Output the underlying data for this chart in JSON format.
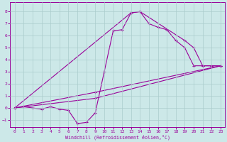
{
  "xlabel": "Windchill (Refroidissement éolien,°C)",
  "bg_color": "#cce8e8",
  "line_color": "#990099",
  "xlim": [
    -0.5,
    23.5
  ],
  "ylim": [
    -1.6,
    8.8
  ],
  "xticks": [
    0,
    1,
    2,
    3,
    4,
    5,
    6,
    7,
    8,
    9,
    10,
    11,
    12,
    13,
    14,
    15,
    16,
    17,
    18,
    19,
    20,
    21,
    22,
    23
  ],
  "yticks": [
    -1,
    0,
    1,
    2,
    3,
    4,
    5,
    6,
    7,
    8
  ],
  "grid_color": "#aacccc",
  "series": [
    {
      "x": [
        0,
        1,
        2,
        3,
        4,
        5,
        6,
        7,
        8,
        9,
        10,
        11,
        12,
        13,
        14,
        15,
        16,
        17,
        18,
        19,
        20,
        21,
        22,
        23
      ],
      "y": [
        0.0,
        0.1,
        0.0,
        -0.1,
        0.1,
        -0.1,
        -0.2,
        -1.3,
        -1.2,
        -0.4,
        3.0,
        6.4,
        6.5,
        7.9,
        8.0,
        7.0,
        6.7,
        6.5,
        5.6,
        5.0,
        3.5,
        3.5,
        3.5,
        3.5
      ]
    },
    {
      "x": [
        0,
        9,
        23
      ],
      "y": [
        0.0,
        0.8,
        3.5
      ]
    },
    {
      "x": [
        0,
        9,
        23
      ],
      "y": [
        0.0,
        1.3,
        3.5
      ]
    },
    {
      "x": [
        0,
        13,
        14,
        19,
        20,
        21,
        22,
        23
      ],
      "y": [
        0.0,
        7.9,
        8.0,
        5.6,
        5.0,
        3.5,
        3.5,
        3.5
      ]
    }
  ]
}
